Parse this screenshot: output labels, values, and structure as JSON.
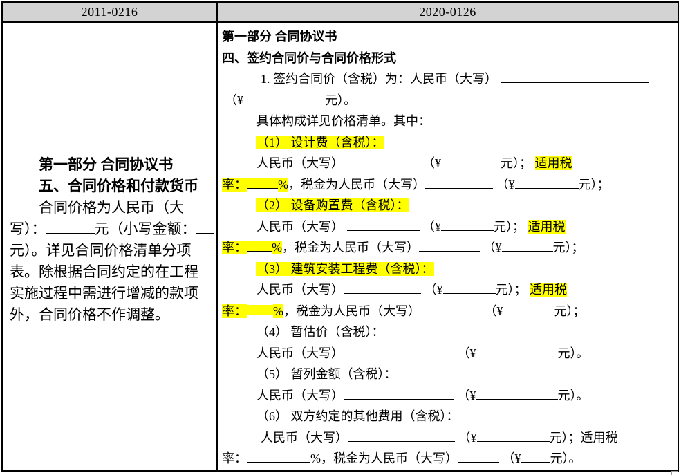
{
  "header": {
    "left": "2011-0216",
    "right": "2020-0126"
  },
  "colors": {
    "highlight": "#FFFF00",
    "header_bg": "#D3D3D3",
    "border": "#000000",
    "text": "#000000"
  },
  "left_cell": {
    "lines": [
      {
        "name": "left-part-title",
        "bold": true,
        "indent": 42,
        "segs": [
          {
            "t": "第一部分  合同协议书"
          }
        ]
      },
      {
        "name": "left-section-title",
        "bold": true,
        "indent": 42,
        "segs": [
          {
            "t": "五、合同价格和付款货币"
          }
        ]
      },
      {
        "name": "left-body-line-1",
        "indent": 42,
        "segs": [
          {
            "t": "合同价格为人民币（大"
          }
        ]
      },
      {
        "name": "left-body-line-2",
        "segs": [
          {
            "t": "写）："
          },
          {
            "b": 70
          },
          {
            "t": "元（小写金额："
          },
          {
            "b": 26
          }
        ]
      },
      {
        "name": "left-body-line-3",
        "segs": [
          {
            "t": "元）。详见合同价格清单分项"
          }
        ]
      },
      {
        "name": "left-body-line-4",
        "segs": [
          {
            "t": "表。除根据合同约定的在工程"
          }
        ]
      },
      {
        "name": "left-body-line-5",
        "segs": [
          {
            "t": "实施过程中需进行增减的款项"
          }
        ]
      },
      {
        "name": "left-body-line-6",
        "segs": [
          {
            "t": "外，合同价格不作调整。"
          }
        ]
      }
    ]
  },
  "right_cell": {
    "lines": [
      {
        "name": "right-part-title",
        "bold": true,
        "segs": [
          {
            "t": "第一部分  合同协议书"
          }
        ]
      },
      {
        "name": "right-section-title",
        "bold": true,
        "segs": [
          {
            "t": "四、签约合同价与合同价格形式"
          }
        ]
      },
      {
        "name": "clause1-line-1",
        "indent": 56,
        "segs": [
          {
            "t": "1. 签约合同价（含税）为：人民币（大写） "
          },
          {
            "b": 215
          }
        ]
      },
      {
        "name": "clause1-line-2",
        "indent": 4,
        "segs": [
          {
            "t": "（¥"
          },
          {
            "b": 118
          },
          {
            "t": "元）。"
          }
        ]
      },
      {
        "name": "composition-note",
        "indent": 50,
        "segs": [
          {
            "t": "具体构成详见价格清单。其中："
          }
        ]
      },
      {
        "name": "item1-header",
        "indent": 50,
        "segs": [
          {
            "t": "（1）  设计费（含税）：",
            "hl": true
          }
        ]
      },
      {
        "name": "item1-amount-line",
        "indent": 50,
        "segs": [
          {
            "t": "人民币（大写） "
          },
          {
            "b": 105
          },
          {
            "t": " （¥"
          },
          {
            "b": 86
          },
          {
            "t": "元）； "
          },
          {
            "t": "适用税",
            "hl": true
          }
        ]
      },
      {
        "name": "item1-tax-line",
        "segs": [
          {
            "t": "率：",
            "hl": true
          },
          {
            "b": 45,
            "hl": true
          },
          {
            "t": "%",
            "hl": true
          },
          {
            "t": "，税金为人民币（大写）"
          },
          {
            "b": 98
          },
          {
            "t": " （¥"
          },
          {
            "b": 92
          },
          {
            "t": "元）；"
          }
        ]
      },
      {
        "name": "item2-header",
        "indent": 50,
        "segs": [
          {
            "t": "（2）  设备购置费（含税）：",
            "hl": true
          }
        ]
      },
      {
        "name": "item2-amount-line",
        "indent": 50,
        "segs": [
          {
            "t": "人民币（大写） "
          },
          {
            "b": 105
          },
          {
            "t": " （¥"
          },
          {
            "b": 76
          },
          {
            "t": "元）； "
          },
          {
            "t": "适用税",
            "hl": true
          }
        ]
      },
      {
        "name": "item2-tax-line",
        "segs": [
          {
            "t": "率：",
            "hl": true
          },
          {
            "b": 36,
            "hl": true
          },
          {
            "t": "%",
            "hl": true
          },
          {
            "t": "，税金为人民币（大写）"
          },
          {
            "b": 88
          },
          {
            "t": " （¥"
          },
          {
            "b": 74
          },
          {
            "t": "元）；"
          }
        ]
      },
      {
        "name": "item3-header",
        "indent": 50,
        "segs": [
          {
            "t": "（3）  建筑安装工程费（含税）：",
            "hl": true
          }
        ]
      },
      {
        "name": "item3-amount-line",
        "indent": 50,
        "segs": [
          {
            "t": "人民币（大写）"
          },
          {
            "b": 112
          },
          {
            "t": " （¥"
          },
          {
            "b": 76
          },
          {
            "t": "元）； "
          },
          {
            "t": "适用税",
            "hl": true
          }
        ]
      },
      {
        "name": "item3-tax-line",
        "segs": [
          {
            "t": "率：",
            "hl": true
          },
          {
            "b": 38,
            "hl": true
          },
          {
            "t": "%",
            "hl": true
          },
          {
            "t": "，税金为人民币（大写）"
          },
          {
            "b": 88
          },
          {
            "t": " （¥"
          },
          {
            "b": 74
          },
          {
            "t": "元）；"
          }
        ]
      },
      {
        "name": "item4-header",
        "indent": 50,
        "segs": [
          {
            "t": "（4）  暂估价（含税）："
          }
        ]
      },
      {
        "name": "item4-amount-line",
        "indent": 50,
        "segs": [
          {
            "t": "人民币（大写）"
          },
          {
            "b": 160
          },
          {
            "t": " （¥"
          },
          {
            "b": 118
          },
          {
            "t": "元）。"
          }
        ]
      },
      {
        "name": "item5-header",
        "indent": 50,
        "segs": [
          {
            "t": "（5）  暂列金额（含税）："
          }
        ]
      },
      {
        "name": "item5-amount-line",
        "indent": 50,
        "segs": [
          {
            "t": "人民币（大写）"
          },
          {
            "b": 160
          },
          {
            "t": " （¥"
          },
          {
            "b": 118
          },
          {
            "t": "元）。"
          }
        ]
      },
      {
        "name": "item6-header",
        "indent": 50,
        "segs": [
          {
            "t": "（6）  双方约定的其他费用（含税）："
          }
        ]
      },
      {
        "name": "item6-amount-line",
        "indent": 56,
        "segs": [
          {
            "t": "人民币（大写）"
          },
          {
            "b": 155
          },
          {
            "t": " （¥"
          },
          {
            "b": 105
          },
          {
            "t": "元）；适用税"
          }
        ]
      },
      {
        "name": "item6-tax-line",
        "segs": [
          {
            "t": "率："
          },
          {
            "b": 92
          },
          {
            "t": "%，税金为人民币（大写）"
          },
          {
            "b": 60
          },
          {
            "t": " （¥"
          },
          {
            "b": 42
          },
          {
            "t": "元）。"
          }
        ]
      }
    ]
  }
}
